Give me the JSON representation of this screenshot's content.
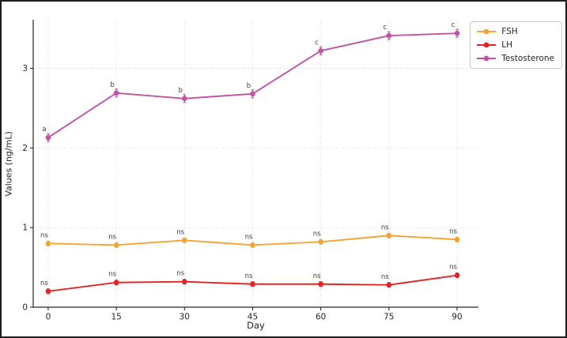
{
  "figure": {
    "background": "#ffffff",
    "border_color": "#1c1c1c",
    "grid_color": "#cccccc",
    "spine_color": "#262626",
    "annotation_color": "#3d3d3d"
  },
  "chart_data": {
    "type": "line",
    "title": "",
    "xlabel": "Day",
    "ylabel": "Values (ng/mL)",
    "x": [
      0,
      15,
      30,
      45,
      60,
      75,
      90
    ],
    "xticks": [
      0,
      15,
      30,
      45,
      60,
      75,
      90
    ],
    "yticks": [
      0,
      1,
      2,
      3
    ],
    "xlim": [
      -3.3,
      94.7
    ],
    "ylim": [
      0,
      3.61
    ],
    "grid": true,
    "grid_style": "dotted",
    "legend_position": "upper right, outside axes",
    "marker": "circle",
    "series": [
      {
        "name": "FSH",
        "color": "#F5A433",
        "values": [
          0.8,
          0.78,
          0.84,
          0.78,
          0.82,
          0.9,
          0.85
        ],
        "err": 0.03,
        "annotations": [
          "ns",
          "ns",
          "ns",
          "ns",
          "ns",
          "ns",
          "ns"
        ]
      },
      {
        "name": "LH",
        "color": "#E32526",
        "values": [
          0.2,
          0.31,
          0.32,
          0.29,
          0.29,
          0.28,
          0.4
        ],
        "err": 0.03,
        "annotations": [
          "ns",
          "ns",
          "ns",
          "ns",
          "ns",
          "ns",
          "ns"
        ]
      },
      {
        "name": "Testosterone",
        "color": "#BF53A6",
        "values": [
          2.13,
          2.69,
          2.62,
          2.68,
          3.22,
          3.41,
          3.44
        ],
        "err": 0.05,
        "annotations": [
          "a",
          "b",
          "b",
          "b",
          "c",
          "c",
          "c"
        ]
      }
    ]
  }
}
